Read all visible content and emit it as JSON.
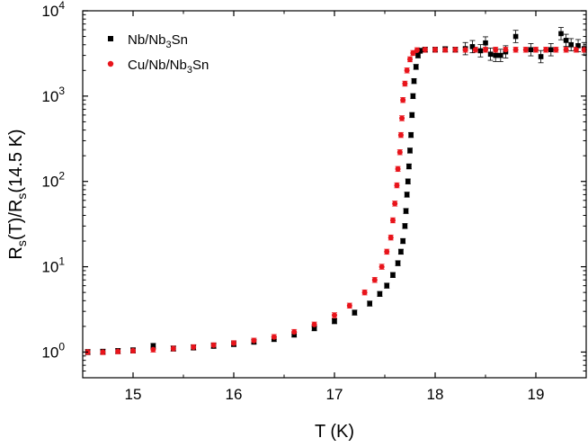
{
  "chart_data": {
    "type": "scatter",
    "title": "",
    "xlabel": {
      "main": "T (K)"
    },
    "ylabel": {
      "parts": [
        "R",
        "s",
        "(T)/R",
        "s",
        "(14.5 K)"
      ]
    },
    "xlim": [
      14.5,
      19.5
    ],
    "ylim": [
      0.5,
      10000
    ],
    "yscale": "log",
    "grid": false,
    "legend_position": "top-left",
    "x_ticks": [
      {
        "value": 15,
        "label": "15"
      },
      {
        "value": 16,
        "label": "16"
      },
      {
        "value": 17,
        "label": "17"
      },
      {
        "value": 18,
        "label": "18"
      },
      {
        "value": 19,
        "label": "19"
      }
    ],
    "y_ticks": [
      {
        "value": 1,
        "base": "10",
        "exp": "0"
      },
      {
        "value": 10,
        "base": "10",
        "exp": "1"
      },
      {
        "value": 100,
        "base": "10",
        "exp": "2"
      },
      {
        "value": 1000,
        "base": "10",
        "exp": "3"
      },
      {
        "value": 10000,
        "base": "10",
        "exp": "4"
      }
    ],
    "series": [
      {
        "name_parts": [
          "Nb/Nb",
          "3",
          "Sn"
        ],
        "marker": "square",
        "color": "#000000",
        "points": [
          [
            14.55,
            1.0
          ],
          [
            14.7,
            1.01
          ],
          [
            14.85,
            1.03
          ],
          [
            15.0,
            1.05
          ],
          [
            15.2,
            1.18
          ],
          [
            15.4,
            1.1
          ],
          [
            15.6,
            1.13
          ],
          [
            15.8,
            1.18
          ],
          [
            16.0,
            1.24
          ],
          [
            16.2,
            1.32
          ],
          [
            16.4,
            1.42
          ],
          [
            16.6,
            1.6
          ],
          [
            16.8,
            1.9
          ],
          [
            17.0,
            2.3
          ],
          [
            17.2,
            2.9
          ],
          [
            17.35,
            3.7
          ],
          [
            17.45,
            4.8
          ],
          [
            17.52,
            6.0
          ],
          [
            17.58,
            8.0
          ],
          [
            17.63,
            11
          ],
          [
            17.66,
            15
          ],
          [
            17.68,
            20
          ],
          [
            17.7,
            30
          ],
          [
            17.71,
            45
          ],
          [
            17.72,
            70
          ],
          [
            17.73,
            100
          ],
          [
            17.74,
            150
          ],
          [
            17.75,
            230
          ],
          [
            17.76,
            350
          ],
          [
            17.77,
            600
          ],
          [
            17.78,
            1000
          ],
          [
            17.79,
            1500
          ],
          [
            17.81,
            2200
          ],
          [
            17.83,
            3000
          ],
          [
            17.85,
            3400
          ],
          [
            17.9,
            3500
          ],
          [
            18.0,
            3500
          ],
          [
            18.1,
            3550
          ],
          [
            18.2,
            3500
          ],
          [
            18.3,
            3600
          ],
          [
            18.37,
            3800
          ],
          [
            18.45,
            3400
          ],
          [
            18.5,
            4200
          ],
          [
            18.55,
            3100
          ],
          [
            18.6,
            3000
          ],
          [
            18.65,
            3000
          ],
          [
            18.7,
            3300
          ],
          [
            18.8,
            5000
          ],
          [
            18.95,
            3500
          ],
          [
            19.05,
            2900
          ],
          [
            19.15,
            3500
          ],
          [
            19.25,
            5400
          ],
          [
            19.3,
            4500
          ],
          [
            19.35,
            4000
          ],
          [
            19.42,
            3900
          ],
          [
            19.48,
            3600
          ]
        ]
      },
      {
        "name_parts": [
          "Cu/Nb/Nb",
          "3",
          "Sn"
        ],
        "marker": "circle",
        "color": "#e8141b",
        "points": [
          [
            14.55,
            1.0
          ],
          [
            14.7,
            1.0
          ],
          [
            14.85,
            1.02
          ],
          [
            15.0,
            1.04
          ],
          [
            15.2,
            1.07
          ],
          [
            15.4,
            1.1
          ],
          [
            15.6,
            1.14
          ],
          [
            15.8,
            1.2
          ],
          [
            16.0,
            1.27
          ],
          [
            16.2,
            1.36
          ],
          [
            16.4,
            1.5
          ],
          [
            16.6,
            1.72
          ],
          [
            16.8,
            2.1
          ],
          [
            17.0,
            2.7
          ],
          [
            17.15,
            3.5
          ],
          [
            17.3,
            5.0
          ],
          [
            17.4,
            7.0
          ],
          [
            17.47,
            10
          ],
          [
            17.52,
            15
          ],
          [
            17.56,
            22
          ],
          [
            17.58,
            35
          ],
          [
            17.6,
            55
          ],
          [
            17.62,
            90
          ],
          [
            17.63,
            140
          ],
          [
            17.65,
            220
          ],
          [
            17.66,
            350
          ],
          [
            17.67,
            550
          ],
          [
            17.68,
            900
          ],
          [
            17.7,
            1400
          ],
          [
            17.72,
            2000
          ],
          [
            17.75,
            2700
          ],
          [
            17.78,
            3200
          ],
          [
            17.82,
            3450
          ],
          [
            17.9,
            3500
          ],
          [
            18.0,
            3500
          ],
          [
            18.1,
            3500
          ],
          [
            18.2,
            3500
          ],
          [
            18.3,
            3500
          ],
          [
            18.4,
            3500
          ],
          [
            18.5,
            3500
          ],
          [
            18.6,
            3500
          ],
          [
            18.7,
            3500
          ],
          [
            18.8,
            3500
          ],
          [
            18.9,
            3500
          ],
          [
            19.0,
            3500
          ],
          [
            19.1,
            3500
          ],
          [
            19.2,
            3500
          ],
          [
            19.3,
            3500
          ],
          [
            19.4,
            3500
          ],
          [
            19.48,
            3500
          ]
        ]
      }
    ]
  }
}
